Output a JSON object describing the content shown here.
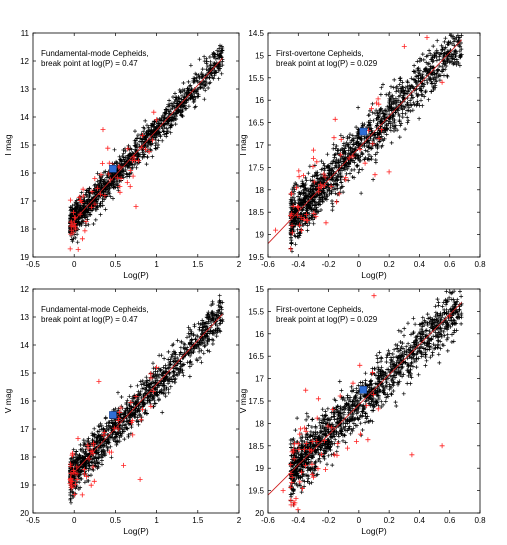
{
  "chart_data": [
    {
      "type": "scatter",
      "annotation": [
        "Fundamental-mode Cepheids,",
        "break point at log(P) = 0.47"
      ],
      "xlabel": "Log(P)",
      "ylabel": "I mag",
      "xlim": [
        -0.5,
        2
      ],
      "ylim": [
        11,
        19
      ],
      "y_inverted": true,
      "xticks": [
        "-0.5",
        "0",
        "0.5",
        "1",
        "1.5",
        "2"
      ],
      "yticks": [
        "11",
        "12",
        "13",
        "14",
        "15",
        "16",
        "17",
        "18",
        "19"
      ],
      "break_point": {
        "x": 0.47,
        "y": 15.85
      },
      "fit_line": {
        "x": [
          -0.05,
          1.8
        ],
        "y": [
          17.85,
          11.9
        ]
      },
      "cloud": {
        "x_range": [
          -0.05,
          1.8
        ],
        "scatter": 0.28,
        "n": 1300
      },
      "outliers": [
        {
          "x": 0.35,
          "y": 14.45
        },
        {
          "x": 1.0,
          "y": 14.1
        },
        {
          "x": 0.75,
          "y": 17.2
        },
        {
          "x": 0.1,
          "y": 18.35
        },
        {
          "x": 0.25,
          "y": 16.2
        },
        {
          "x": 0.02,
          "y": 18.0
        }
      ],
      "series": [
        {
          "name": "",
          "color": "#000000",
          "marker": "+"
        },
        {
          "name": "",
          "color": "#ff0000",
          "marker": "+"
        }
      ],
      "marker_color": "#2f6fd6",
      "line_color": "#d02020"
    },
    {
      "type": "scatter",
      "annotation": [
        "First-overtone Cepheids,",
        "break point at log(P) = 0.029"
      ],
      "xlabel": "Log(P)",
      "ylabel": "I mag",
      "xlim": [
        -0.6,
        0.8
      ],
      "ylim": [
        14.5,
        19.5
      ],
      "y_inverted": true,
      "xticks": [
        "-0.6",
        "-0.4",
        "-0.2",
        "0",
        "0.2",
        "0.4",
        "0.6",
        "0.8"
      ],
      "yticks": [
        "14.5",
        "15",
        "15.5",
        "16",
        "16.5",
        "17",
        "17.5",
        "18",
        "18.5",
        "19",
        "19.5"
      ],
      "break_point": {
        "x": 0.029,
        "y": 16.7
      },
      "fit_line": {
        "x": [
          -0.6,
          0.68
        ],
        "y": [
          19.2,
          14.65
        ]
      },
      "cloud": {
        "x_range": [
          -0.45,
          0.68
        ],
        "scatter": 0.28,
        "n": 1500
      },
      "outliers": [
        {
          "x": 0.45,
          "y": 14.6
        },
        {
          "x": 0.3,
          "y": 14.8
        },
        {
          "x": -0.3,
          "y": 17.3
        },
        {
          "x": -0.55,
          "y": 18.9
        },
        {
          "x": 0.55,
          "y": 15.6
        },
        {
          "x": 0.2,
          "y": 17.6
        }
      ],
      "series": [
        {
          "name": "",
          "color": "#000000",
          "marker": "+"
        },
        {
          "name": "",
          "color": "#ff0000",
          "marker": "+"
        }
      ],
      "marker_color": "#2f6fd6",
      "line_color": "#d02020"
    },
    {
      "type": "scatter",
      "annotation": [
        "Fundamental-mode Cepheids,",
        "break point at log(P) = 0.47"
      ],
      "xlabel": "Log(P)",
      "ylabel": "V mag",
      "xlim": [
        -0.5,
        2
      ],
      "ylim": [
        12,
        20
      ],
      "y_inverted": true,
      "xticks": [
        "-0.5",
        "0",
        "0.5",
        "1",
        "1.5",
        "2"
      ],
      "yticks": [
        "12",
        "13",
        "14",
        "15",
        "16",
        "17",
        "18",
        "19",
        "20"
      ],
      "break_point": {
        "x": 0.47,
        "y": 16.5
      },
      "fit_line": {
        "x": [
          -0.05,
          1.8
        ],
        "y": [
          18.7,
          12.9
        ]
      },
      "cloud": {
        "x_range": [
          -0.05,
          1.8
        ],
        "scatter": 0.35,
        "n": 1300
      },
      "outliers": [
        {
          "x": 0.3,
          "y": 15.3
        },
        {
          "x": 0.8,
          "y": 18.8
        },
        {
          "x": 0.6,
          "y": 18.3
        },
        {
          "x": -0.03,
          "y": 19.1
        },
        {
          "x": 0.15,
          "y": 18.7
        },
        {
          "x": 1.0,
          "y": 14.8
        }
      ],
      "series": [
        {
          "name": "",
          "color": "#000000",
          "marker": "+"
        },
        {
          "name": "",
          "color": "#ff0000",
          "marker": "+"
        }
      ],
      "marker_color": "#2f6fd6",
      "line_color": "#d02020"
    },
    {
      "type": "scatter",
      "annotation": [
        "First-overtone Cepheids,",
        "break point at log(P) = 0.029"
      ],
      "xlabel": "Log(P)",
      "ylabel": "V mag",
      "xlim": [
        -0.6,
        0.8
      ],
      "ylim": [
        15,
        20
      ],
      "y_inverted": true,
      "xticks": [
        "-0.6",
        "-0.4",
        "-0.2",
        "0",
        "0.2",
        "0.4",
        "0.6",
        "0.8"
      ],
      "yticks": [
        "15",
        "15.5",
        "16",
        "16.5",
        "17",
        "17.5",
        "18",
        "18.5",
        "19",
        "19.5",
        "20"
      ],
      "break_point": {
        "x": 0.029,
        "y": 17.25
      },
      "fit_line": {
        "x": [
          -0.6,
          0.68
        ],
        "y": [
          19.6,
          15.3
        ]
      },
      "cloud": {
        "x_range": [
          -0.45,
          0.68
        ],
        "scatter": 0.3,
        "n": 1500
      },
      "outliers": [
        {
          "x": 0.1,
          "y": 15.15
        },
        {
          "x": 0.55,
          "y": 18.5
        },
        {
          "x": -0.3,
          "y": 19.2
        },
        {
          "x": -0.5,
          "y": 19.5
        },
        {
          "x": 0.6,
          "y": 15.6
        },
        {
          "x": 0.35,
          "y": 18.7
        }
      ],
      "series": [
        {
          "name": "",
          "color": "#000000",
          "marker": "+"
        },
        {
          "name": "",
          "color": "#ff0000",
          "marker": "+"
        }
      ],
      "marker_color": "#2f6fd6",
      "line_color": "#d02020"
    }
  ]
}
